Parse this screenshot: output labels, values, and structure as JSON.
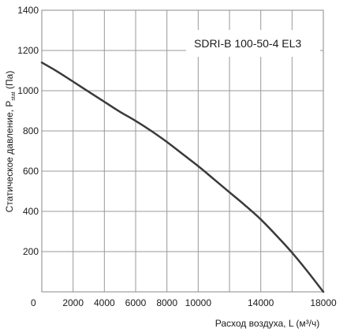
{
  "chart_data": {
    "type": "line",
    "title": "",
    "annotation": "SDRI-B 100-50-4 EL3",
    "xlabel": "Расход воздуха, L (м³/ч)",
    "ylabel_main": "Статическое давление, P",
    "ylabel_sub": "stat",
    "ylabel_unit": " (Па)",
    "xlim": [
      0,
      18000
    ],
    "ylim": [
      0,
      1400
    ],
    "x_ticks": [
      0,
      2000,
      4000,
      6000,
      8000,
      10000,
      14000,
      18000
    ],
    "y_ticks": [
      200,
      400,
      600,
      800,
      1000,
      1200,
      1400
    ],
    "x_grid_step": 2000,
    "y_grid_step": 200,
    "grid": true,
    "colors": {
      "line": "#3a3a3a",
      "grid": "#9a9a9a",
      "frame": "#8a8a8a"
    },
    "series": [
      {
        "x": [
          0,
          1000,
          2000,
          3000,
          4000,
          5000,
          6000,
          7000,
          8000,
          9000,
          10000,
          11000,
          12000,
          13000,
          14000,
          15000,
          16000,
          17000,
          18000
        ],
        "values": [
          1140,
          1095,
          1045,
          995,
          945,
          895,
          850,
          800,
          745,
          685,
          625,
          560,
          495,
          430,
          360,
          280,
          195,
          100,
          0
        ]
      }
    ]
  }
}
